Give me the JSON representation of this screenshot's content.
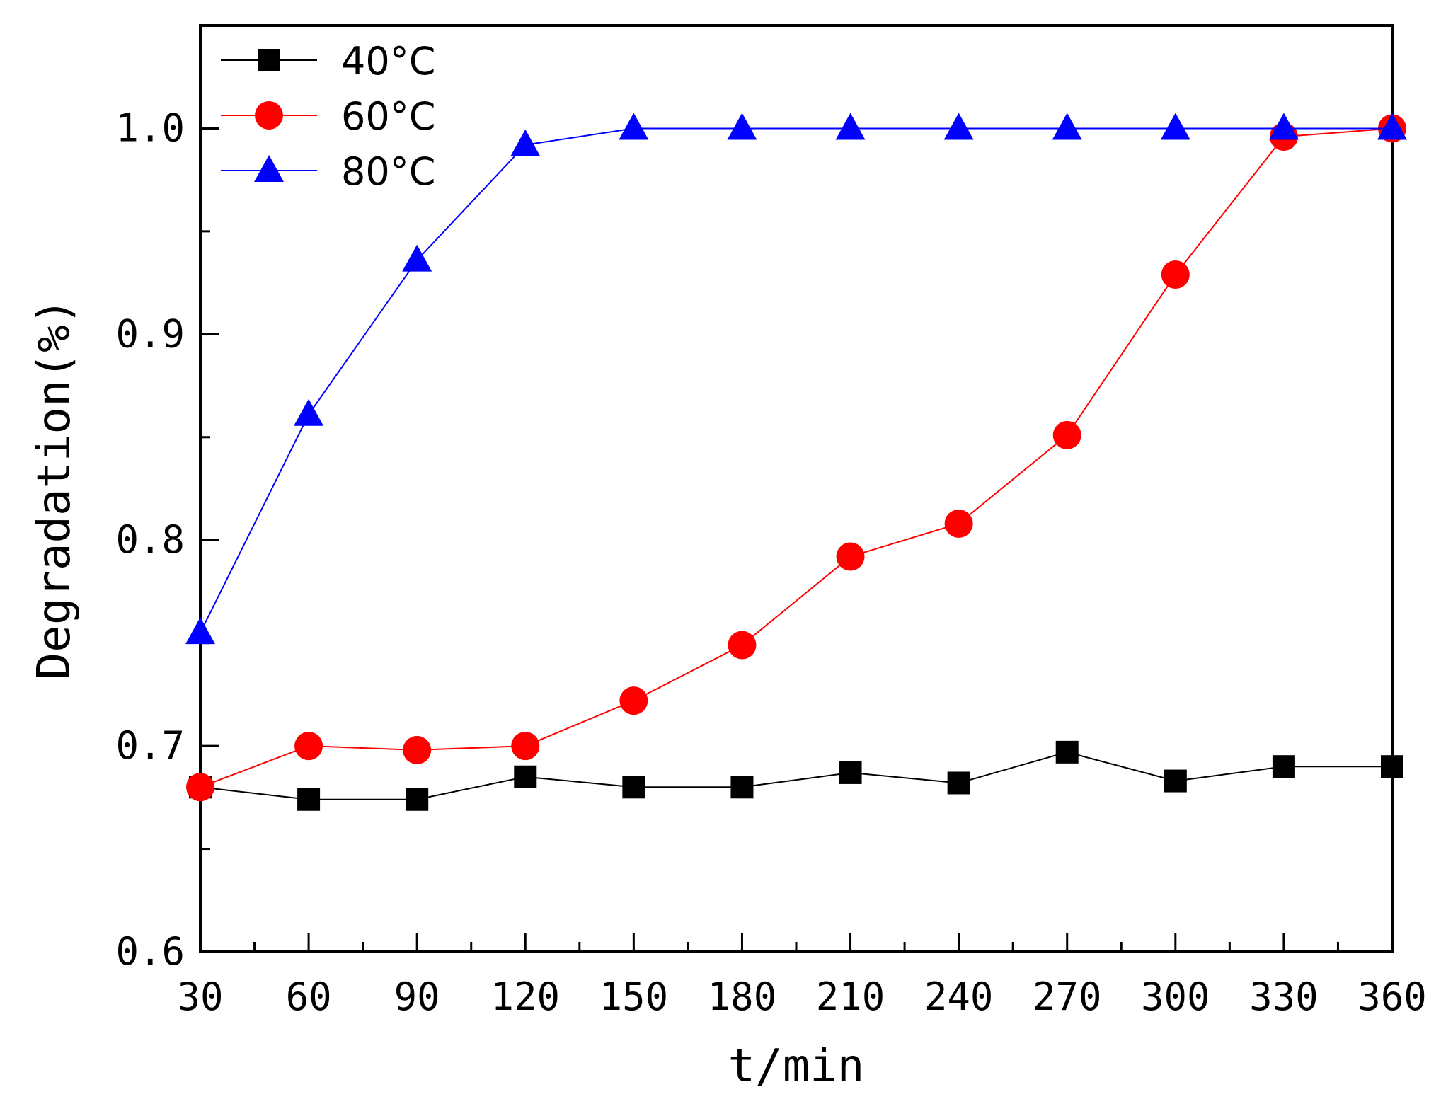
{
  "chart_data": {
    "type": "line",
    "title": "",
    "xlabel": "t/min",
    "ylabel": "Degradation(%)",
    "x": [
      30,
      60,
      90,
      120,
      150,
      180,
      210,
      240,
      270,
      300,
      330,
      360
    ],
    "xlim": [
      30,
      360
    ],
    "ylim": [
      0.6,
      1.05
    ],
    "x_ticks": [
      "30",
      "60",
      "90",
      "120",
      "150",
      "180",
      "210",
      "240",
      "270",
      "300",
      "330",
      "360"
    ],
    "y_ticks": [
      "0.6",
      "0.7",
      "0.8",
      "0.9",
      "1.0"
    ],
    "grid": false,
    "legend_position": "top-left",
    "series": [
      {
        "name": "40°C",
        "color": "#000000",
        "marker": "square",
        "values": [
          0.68,
          0.674,
          0.674,
          0.685,
          0.68,
          0.68,
          0.687,
          0.682,
          0.697,
          0.683,
          0.69,
          0.69
        ]
      },
      {
        "name": "60°C",
        "color": "#ff0000",
        "marker": "circle",
        "values": [
          0.68,
          0.7,
          0.698,
          0.7,
          0.722,
          0.749,
          0.792,
          0.808,
          0.851,
          0.929,
          0.996,
          1.0
        ]
      },
      {
        "name": "80°C",
        "color": "#0000ff",
        "marker": "triangle",
        "values": [
          0.755,
          0.861,
          0.936,
          0.992,
          1.0,
          1.0,
          1.0,
          1.0,
          1.0,
          1.0,
          1.0,
          1.0
        ]
      }
    ]
  }
}
